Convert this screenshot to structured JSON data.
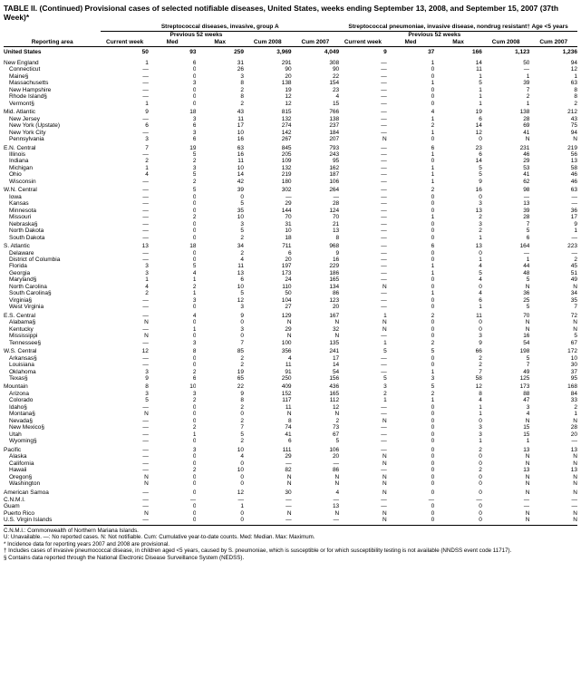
{
  "table_title": "TABLE II. (Continued) Provisional cases of selected notifiable diseases, United States, weeks ending September 13, 2008, and September 15, 2007 (37th Week)*",
  "section_a": "Streptococcal diseases, invasive, group A",
  "section_b": "Streptococcal pneumoniae, invasive disease, nondrug resistant† Age <5 years",
  "h_current": "Current week",
  "h_prev": "Previous 52 weeks",
  "h_med": "Med",
  "h_max": "Max",
  "h_cum08": "Cum 2008",
  "h_cum07": "Cum 2007",
  "h_area": "Reporting area",
  "us_label": "United States",
  "us": [
    "50",
    "93",
    "259",
    "3,969",
    "4,049",
    "9",
    "37",
    "166",
    "1,123",
    "1,236"
  ],
  "groups": [
    {
      "name": "New England",
      "vals": [
        "1",
        "6",
        "31",
        "291",
        "308",
        "—",
        "1",
        "14",
        "50",
        "94"
      ],
      "subs": [
        {
          "n": "Connecticut",
          "v": [
            "—",
            "0",
            "26",
            "90",
            "90",
            "—",
            "0",
            "11",
            "—",
            "12"
          ]
        },
        {
          "n": "Maine§",
          "v": [
            "—",
            "0",
            "3",
            "20",
            "22",
            "—",
            "0",
            "1",
            "1",
            "1"
          ]
        },
        {
          "n": "Massachusetts",
          "v": [
            "—",
            "3",
            "8",
            "138",
            "154",
            "—",
            "1",
            "5",
            "39",
            "63"
          ]
        },
        {
          "n": "New Hampshire",
          "v": [
            "—",
            "0",
            "2",
            "19",
            "23",
            "—",
            "0",
            "1",
            "7",
            "8"
          ]
        },
        {
          "n": "Rhode Island§",
          "v": [
            "—",
            "0",
            "8",
            "12",
            "4",
            "—",
            "0",
            "1",
            "2",
            "8"
          ]
        },
        {
          "n": "Vermont§",
          "v": [
            "1",
            "0",
            "2",
            "12",
            "15",
            "—",
            "0",
            "1",
            "1",
            "2"
          ]
        }
      ]
    },
    {
      "name": "Mid. Atlantic",
      "vals": [
        "9",
        "18",
        "43",
        "815",
        "766",
        "—",
        "4",
        "19",
        "138",
        "212"
      ],
      "subs": [
        {
          "n": "New Jersey",
          "v": [
            "—",
            "3",
            "11",
            "132",
            "138",
            "—",
            "1",
            "6",
            "28",
            "43"
          ]
        },
        {
          "n": "New York (Upstate)",
          "v": [
            "6",
            "6",
            "17",
            "274",
            "237",
            "—",
            "2",
            "14",
            "69",
            "75"
          ]
        },
        {
          "n": "New York City",
          "v": [
            "—",
            "3",
            "10",
            "142",
            "184",
            "—",
            "1",
            "12",
            "41",
            "94"
          ]
        },
        {
          "n": "Pennsylvania",
          "v": [
            "3",
            "6",
            "16",
            "267",
            "207",
            "N",
            "0",
            "0",
            "N",
            "N"
          ]
        }
      ]
    },
    {
      "name": "E.N. Central",
      "vals": [
        "7",
        "19",
        "63",
        "845",
        "793",
        "—",
        "6",
        "23",
        "231",
        "219"
      ],
      "subs": [
        {
          "n": "Illinois",
          "v": [
            "—",
            "5",
            "16",
            "205",
            "243",
            "—",
            "1",
            "6",
            "46",
            "56"
          ]
        },
        {
          "n": "Indiana",
          "v": [
            "2",
            "2",
            "11",
            "109",
            "95",
            "—",
            "0",
            "14",
            "29",
            "13"
          ]
        },
        {
          "n": "Michigan",
          "v": [
            "1",
            "3",
            "10",
            "132",
            "162",
            "—",
            "1",
            "5",
            "53",
            "58"
          ]
        },
        {
          "n": "Ohio",
          "v": [
            "4",
            "5",
            "14",
            "219",
            "187",
            "—",
            "1",
            "5",
            "41",
            "46"
          ]
        },
        {
          "n": "Wisconsin",
          "v": [
            "—",
            "2",
            "42",
            "180",
            "106",
            "—",
            "1",
            "9",
            "62",
            "46"
          ]
        }
      ]
    },
    {
      "name": "W.N. Central",
      "vals": [
        "—",
        "5",
        "39",
        "302",
        "264",
        "—",
        "2",
        "16",
        "98",
        "63"
      ],
      "subs": [
        {
          "n": "Iowa",
          "v": [
            "—",
            "0",
            "0",
            "—",
            "—",
            "—",
            "0",
            "0",
            "—",
            "—"
          ]
        },
        {
          "n": "Kansas",
          "v": [
            "—",
            "0",
            "5",
            "29",
            "28",
            "—",
            "0",
            "3",
            "13",
            "—"
          ]
        },
        {
          "n": "Minnesota",
          "v": [
            "—",
            "0",
            "35",
            "144",
            "124",
            "—",
            "0",
            "13",
            "39",
            "36"
          ]
        },
        {
          "n": "Missouri",
          "v": [
            "—",
            "2",
            "10",
            "70",
            "70",
            "—",
            "1",
            "2",
            "28",
            "17"
          ]
        },
        {
          "n": "Nebraska§",
          "v": [
            "—",
            "0",
            "3",
            "31",
            "21",
            "—",
            "0",
            "3",
            "7",
            "9"
          ]
        },
        {
          "n": "North Dakota",
          "v": [
            "—",
            "0",
            "5",
            "10",
            "13",
            "—",
            "0",
            "2",
            "5",
            "1"
          ]
        },
        {
          "n": "South Dakota",
          "v": [
            "—",
            "0",
            "2",
            "18",
            "8",
            "—",
            "0",
            "1",
            "6",
            "—"
          ]
        }
      ]
    },
    {
      "name": "S. Atlantic",
      "vals": [
        "13",
        "18",
        "34",
        "711",
        "968",
        "—",
        "6",
        "13",
        "164",
        "223"
      ],
      "subs": [
        {
          "n": "Delaware",
          "v": [
            "—",
            "0",
            "2",
            "6",
            "9",
            "—",
            "0",
            "0",
            "—",
            "—"
          ]
        },
        {
          "n": "District of Columbia",
          "v": [
            "—",
            "0",
            "4",
            "20",
            "16",
            "—",
            "0",
            "1",
            "1",
            "2"
          ]
        },
        {
          "n": "Florida",
          "v": [
            "3",
            "5",
            "11",
            "197",
            "229",
            "—",
            "1",
            "4",
            "44",
            "45"
          ]
        },
        {
          "n": "Georgia",
          "v": [
            "3",
            "4",
            "13",
            "173",
            "186",
            "—",
            "1",
            "5",
            "48",
            "51"
          ]
        },
        {
          "n": "Maryland§",
          "v": [
            "1",
            "1",
            "6",
            "24",
            "165",
            "—",
            "0",
            "4",
            "5",
            "49"
          ]
        },
        {
          "n": "North Carolina",
          "v": [
            "4",
            "2",
            "10",
            "110",
            "134",
            "N",
            "0",
            "0",
            "N",
            "N"
          ]
        },
        {
          "n": "South Carolina§",
          "v": [
            "2",
            "1",
            "5",
            "50",
            "86",
            "—",
            "1",
            "4",
            "36",
            "34"
          ]
        },
        {
          "n": "Virginia§",
          "v": [
            "—",
            "3",
            "12",
            "104",
            "123",
            "—",
            "0",
            "6",
            "25",
            "35"
          ]
        },
        {
          "n": "West Virginia",
          "v": [
            "—",
            "0",
            "3",
            "27",
            "20",
            "—",
            "0",
            "1",
            "5",
            "7"
          ]
        }
      ]
    },
    {
      "name": "E.S. Central",
      "vals": [
        "—",
        "4",
        "9",
        "129",
        "167",
        "1",
        "2",
        "11",
        "70",
        "72"
      ],
      "subs": [
        {
          "n": "Alabama§",
          "v": [
            "N",
            "0",
            "0",
            "N",
            "N",
            "N",
            "0",
            "0",
            "N",
            "N"
          ]
        },
        {
          "n": "Kentucky",
          "v": [
            "—",
            "1",
            "3",
            "29",
            "32",
            "N",
            "0",
            "0",
            "N",
            "N"
          ]
        },
        {
          "n": "Mississippi",
          "v": [
            "N",
            "0",
            "0",
            "N",
            "N",
            "—",
            "0",
            "3",
            "16",
            "5"
          ]
        },
        {
          "n": "Tennessee§",
          "v": [
            "—",
            "3",
            "7",
            "100",
            "135",
            "1",
            "2",
            "9",
            "54",
            "67"
          ]
        }
      ]
    },
    {
      "name": "W.S. Central",
      "vals": [
        "12",
        "8",
        "85",
        "356",
        "241",
        "5",
        "5",
        "66",
        "198",
        "172"
      ],
      "subs": [
        {
          "n": "Arkansas§",
          "v": [
            "—",
            "0",
            "2",
            "4",
            "17",
            "—",
            "0",
            "2",
            "5",
            "10"
          ]
        },
        {
          "n": "Louisiana",
          "v": [
            "—",
            "0",
            "2",
            "11",
            "14",
            "—",
            "0",
            "2",
            "7",
            "30"
          ]
        },
        {
          "n": "Oklahoma",
          "v": [
            "3",
            "2",
            "19",
            "91",
            "54",
            "—",
            "1",
            "7",
            "49",
            "37"
          ]
        },
        {
          "n": "Texas§",
          "v": [
            "9",
            "6",
            "65",
            "250",
            "156",
            "5",
            "3",
            "58",
            "125",
            "95"
          ]
        }
      ]
    },
    {
      "name": "Mountain",
      "vals": [
        "8",
        "10",
        "22",
        "409",
        "436",
        "3",
        "5",
        "12",
        "173",
        "168"
      ],
      "subs": [
        {
          "n": "Arizona",
          "v": [
            "3",
            "3",
            "9",
            "152",
            "165",
            "2",
            "2",
            "8",
            "88",
            "84"
          ]
        },
        {
          "n": "Colorado",
          "v": [
            "5",
            "2",
            "8",
            "117",
            "112",
            "1",
            "1",
            "4",
            "47",
            "33"
          ]
        },
        {
          "n": "Idaho§",
          "v": [
            "—",
            "0",
            "2",
            "11",
            "12",
            "—",
            "0",
            "1",
            "3",
            "2"
          ]
        },
        {
          "n": "Montana§",
          "v": [
            "N",
            "0",
            "0",
            "N",
            "N",
            "—",
            "0",
            "1",
            "4",
            "1"
          ]
        },
        {
          "n": "Nevada§",
          "v": [
            "—",
            "0",
            "2",
            "8",
            "2",
            "N",
            "0",
            "0",
            "N",
            "N"
          ]
        },
        {
          "n": "New Mexico§",
          "v": [
            "—",
            "2",
            "7",
            "74",
            "73",
            "—",
            "0",
            "3",
            "15",
            "28"
          ]
        },
        {
          "n": "Utah",
          "v": [
            "—",
            "1",
            "5",
            "41",
            "67",
            "—",
            "0",
            "3",
            "15",
            "20"
          ]
        },
        {
          "n": "Wyoming§",
          "v": [
            "—",
            "0",
            "2",
            "6",
            "5",
            "—",
            "0",
            "1",
            "1",
            "—"
          ]
        }
      ]
    },
    {
      "name": "Pacific",
      "vals": [
        "—",
        "3",
        "10",
        "111",
        "106",
        "—",
        "0",
        "2",
        "13",
        "13"
      ],
      "subs": [
        {
          "n": "Alaska",
          "v": [
            "—",
            "0",
            "4",
            "29",
            "20",
            "N",
            "0",
            "0",
            "N",
            "N"
          ]
        },
        {
          "n": "California",
          "v": [
            "—",
            "0",
            "0",
            "—",
            "—",
            "N",
            "0",
            "0",
            "N",
            "N"
          ]
        },
        {
          "n": "Hawaii",
          "v": [
            "—",
            "2",
            "10",
            "82",
            "86",
            "—",
            "0",
            "2",
            "13",
            "13"
          ]
        },
        {
          "n": "Oregon§",
          "v": [
            "N",
            "0",
            "0",
            "N",
            "N",
            "N",
            "0",
            "0",
            "N",
            "N"
          ]
        },
        {
          "n": "Washington",
          "v": [
            "N",
            "0",
            "0",
            "N",
            "N",
            "N",
            "0",
            "0",
            "N",
            "N"
          ]
        }
      ]
    }
  ],
  "territories": [
    {
      "n": "American Samoa",
      "v": [
        "—",
        "0",
        "12",
        "30",
        "4",
        "N",
        "0",
        "0",
        "N",
        "N"
      ]
    },
    {
      "n": "C.N.M.I.",
      "v": [
        "—",
        "—",
        "—",
        "—",
        "—",
        "—",
        "—",
        "—",
        "—",
        "—"
      ]
    },
    {
      "n": "Guam",
      "v": [
        "—",
        "0",
        "1",
        "—",
        "13",
        "—",
        "0",
        "0",
        "—",
        "—"
      ]
    },
    {
      "n": "Puerto Rico",
      "v": [
        "N",
        "0",
        "0",
        "N",
        "N",
        "N",
        "0",
        "0",
        "N",
        "N"
      ]
    },
    {
      "n": "U.S. Virgin Islands",
      "v": [
        "—",
        "0",
        "0",
        "—",
        "—",
        "N",
        "0",
        "0",
        "N",
        "N"
      ]
    }
  ],
  "footnotes": [
    "C.N.M.I.: Commonwealth of Northern Mariana Islands.",
    "U: Unavailable.   —: No reported cases.   N: Not notifiable.   Cum: Cumulative year-to-date counts.   Med: Median.   Max: Maximum.",
    "* Incidence data for reporting years 2007 and 2008 are provisional.",
    "† Includes cases of invasive pneumococcal disease, in children aged <5 years, caused by S. pneumoniae, which is susceptible or for which susceptibility testing is not available (NNDSS event code 11717).",
    "§ Contains data reported through the National Electronic Disease Surveillance System (NEDSS)."
  ],
  "style": {
    "bg": "#ffffff",
    "fg": "#000000",
    "font": "Arial",
    "base_size": 6.5,
    "title_size": 8.5,
    "footer_size": 6.2,
    "col_widths": {
      "area": 98,
      "num": 48
    },
    "dash": "—"
  }
}
